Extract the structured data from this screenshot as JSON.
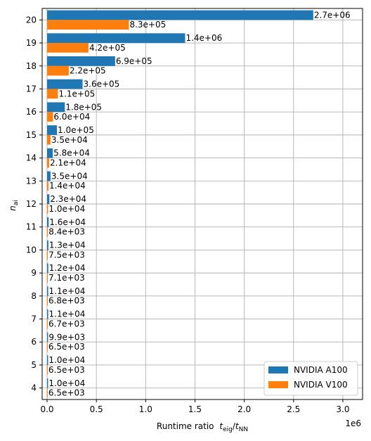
{
  "chart_data": {
    "type": "bar",
    "orientation": "horizontal",
    "categories": [
      "4",
      "5",
      "6",
      "7",
      "8",
      "9",
      "10",
      "11",
      "12",
      "13",
      "14",
      "15",
      "16",
      "17",
      "18",
      "19",
      "20"
    ],
    "series": [
      {
        "name": "NVIDIA A100",
        "color": "#1f77b4",
        "values": [
          10000,
          10000,
          9900,
          11000,
          11000,
          12000,
          13000,
          16000,
          23000,
          35000,
          58000,
          100000,
          180000,
          360000,
          690000,
          1400000,
          2700000
        ],
        "labels": [
          "1.0e+04",
          "1.0e+04",
          "9.9e+03",
          "1.1e+04",
          "1.1e+04",
          "1.2e+04",
          "1.3e+04",
          "1.6e+04",
          "2.3e+04",
          "3.5e+04",
          "5.8e+04",
          "1.0e+05",
          "1.8e+05",
          "3.6e+05",
          "6.9e+05",
          "1.4e+06",
          "2.7e+06"
        ]
      },
      {
        "name": "NVIDIA V100",
        "color": "#ff7f0e",
        "values": [
          6500,
          6500,
          6500,
          6700,
          6800,
          7100,
          7500,
          8400,
          10000,
          14000,
          21000,
          35000,
          60000,
          110000,
          220000,
          420000,
          830000
        ],
        "labels": [
          "6.5e+03",
          "6.5e+03",
          "6.5e+03",
          "6.7e+03",
          "6.8e+03",
          "7.1e+03",
          "7.5e+03",
          "8.4e+03",
          "1.0e+04",
          "1.4e+04",
          "2.1e+04",
          "3.5e+04",
          "6.0e+04",
          "1.1e+05",
          "2.2e+05",
          "4.2e+05",
          "8.3e+05"
        ]
      }
    ],
    "xlabel": "Runtime ratio",
    "xlabel_math_t1": "t",
    "xlabel_math_sub1": "eig",
    "xlabel_math_slash": "/",
    "xlabel_math_t2": "t",
    "xlabel_math_sub2": "NN",
    "ylabel_main": "n",
    "ylabel_sub": "ai",
    "x_ticks": [
      0,
      500000,
      1000000,
      1500000,
      2000000,
      2500000,
      3000000
    ],
    "x_tick_labels": [
      "0.0",
      "0.5",
      "1.0",
      "1.5",
      "2.0",
      "2.5",
      "3.0"
    ],
    "x_offset_label": "1e6",
    "xlim": [
      -50000,
      3200000
    ],
    "grid": true,
    "legend_position": "bottom-right"
  }
}
